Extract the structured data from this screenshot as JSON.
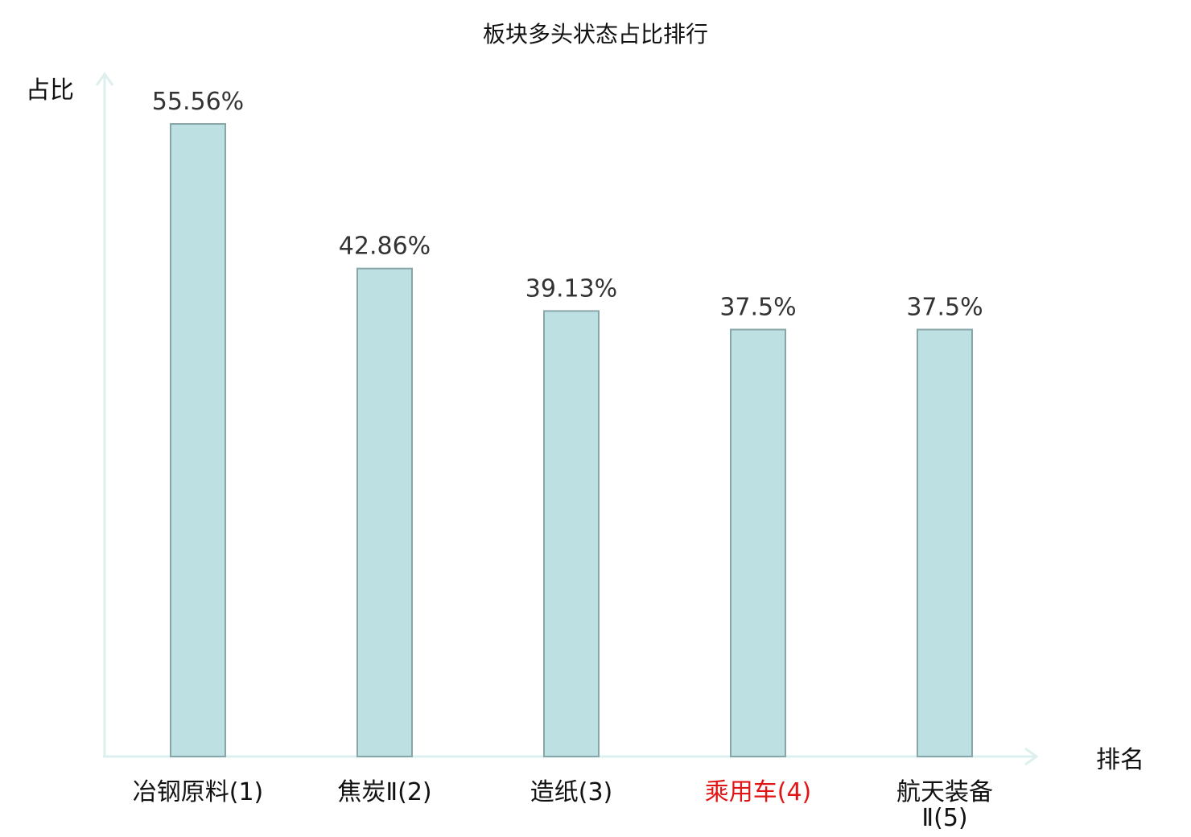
{
  "chart_data": {
    "type": "bar",
    "title": "板块多头状态占比排行",
    "ylabel": "占比",
    "xlabel": "排名",
    "categories": [
      [
        "冶钢原料(1)"
      ],
      [
        "焦炭Ⅱ(2)"
      ],
      [
        "造纸(3)"
      ],
      [
        "乘用车(4)"
      ],
      [
        "航天装备",
        "Ⅱ(5)"
      ]
    ],
    "values": [
      55.56,
      42.86,
      39.13,
      37.5,
      37.5
    ],
    "value_labels": [
      "55.56%",
      "42.86%",
      "39.13%",
      "37.5%",
      "37.5%"
    ],
    "highlight_index": 3,
    "ylim": [
      0,
      60
    ],
    "grid": false,
    "colors": {
      "bar_fill": "#bde0e3",
      "bar_stroke": "#86a6a8",
      "axis": "#ddf0ee",
      "highlight": "#e11515"
    }
  }
}
